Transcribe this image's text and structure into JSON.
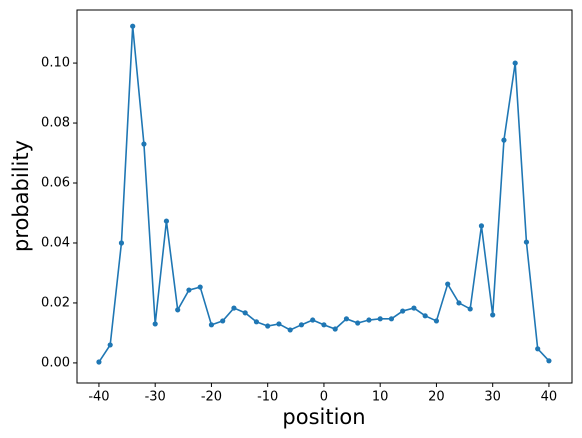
{
  "chart_data": {
    "type": "line",
    "xlabel": "position",
    "ylabel": "probability",
    "x": [
      -40,
      -38,
      -36,
      -34,
      -32,
      -30,
      -28,
      -26,
      -24,
      -22,
      -20,
      -18,
      -16,
      -14,
      -12,
      -10,
      -8,
      -6,
      -4,
      -2,
      0,
      2,
      4,
      6,
      8,
      10,
      12,
      14,
      16,
      18,
      20,
      22,
      24,
      26,
      28,
      30,
      32,
      34,
      36,
      38,
      40
    ],
    "series": [
      {
        "color": "#1f77b4",
        "values": [
          0.0003,
          0.006,
          0.04,
          0.1123,
          0.073,
          0.013,
          0.0473,
          0.0177,
          0.0243,
          0.0253,
          0.0127,
          0.014,
          0.0183,
          0.0167,
          0.0137,
          0.0123,
          0.013,
          0.011,
          0.0127,
          0.0143,
          0.0127,
          0.0113,
          0.0147,
          0.0133,
          0.0143,
          0.0147,
          0.0147,
          0.0173,
          0.0183,
          0.0157,
          0.014,
          0.0263,
          0.02,
          0.018,
          0.0457,
          0.016,
          0.0743,
          0.1,
          0.0403,
          0.0047,
          0.0007
        ]
      }
    ],
    "xlim": [
      -43.9,
      44.1
    ],
    "ylim": [
      -0.0067,
      0.1177
    ],
    "xticks": [
      -40,
      -30,
      -20,
      -10,
      0,
      10,
      20,
      30,
      40
    ],
    "yticks": [
      {
        "value": 0,
        "label": "0.00"
      },
      {
        "value": 0.02,
        "label": "0.02"
      },
      {
        "value": 0.04,
        "label": "0.04"
      },
      {
        "value": 0.06,
        "label": "0.06"
      },
      {
        "value": 0.08,
        "label": "0.08"
      },
      {
        "value": 0.1,
        "label": "0.10"
      }
    ],
    "markers": true
  }
}
